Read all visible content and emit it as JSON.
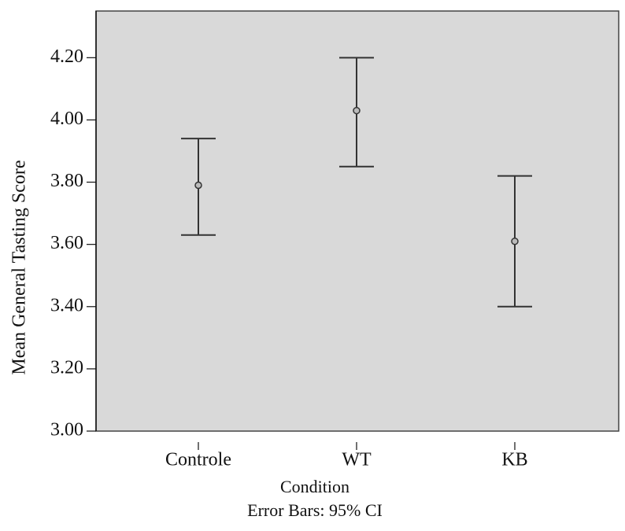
{
  "chart_data": {
    "type": "errorbar",
    "y_label": "Mean General Tasting Score",
    "x_label": "Condition",
    "note": "Error Bars: 95% CI",
    "categories": [
      "Controle",
      "WT",
      "KB"
    ],
    "values": [
      3.79,
      4.03,
      3.61
    ],
    "lower": [
      3.63,
      3.85,
      3.4
    ],
    "upper": [
      3.94,
      4.2,
      3.82
    ],
    "color": "#333333",
    "ylim": [
      3.0,
      4.35
    ],
    "yticks": [
      {
        "value": 3.0,
        "label": "3.00"
      },
      {
        "value": 3.2,
        "label": "3.20"
      },
      {
        "value": 3.4,
        "label": "3.40"
      },
      {
        "value": 3.6,
        "label": "3.60"
      },
      {
        "value": 3.8,
        "label": "3.80"
      },
      {
        "value": 4.0,
        "label": "4.00"
      },
      {
        "value": 4.2,
        "label": "4.20"
      }
    ]
  }
}
